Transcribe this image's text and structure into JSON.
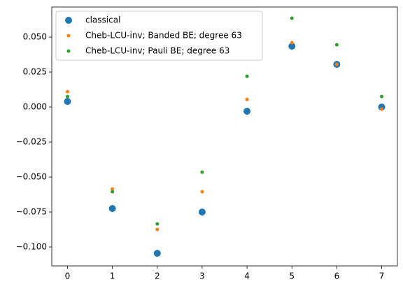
{
  "chart_data": {
    "type": "scatter",
    "x": [
      0,
      1,
      2,
      3,
      4,
      5,
      6,
      7
    ],
    "series": [
      {
        "name": "classical",
        "color": "#1f77b4",
        "values": [
          0.004,
          -0.0725,
          -0.1045,
          -0.075,
          -0.003,
          0.0435,
          0.0305,
          0.0
        ]
      },
      {
        "name": "Cheb-LCU-inv; Banded BE; degree 63",
        "color": "#ff7f0e",
        "values": [
          0.011,
          -0.0585,
          -0.0875,
          -0.0605,
          0.0055,
          0.046,
          0.0305,
          -0.0015
        ]
      },
      {
        "name": "Cheb-LCU-inv; Pauli BE; degree 63",
        "color": "#2ca02c",
        "values": [
          0.0075,
          -0.0605,
          -0.0835,
          -0.0465,
          0.022,
          0.0635,
          0.0445,
          0.0075
        ]
      }
    ],
    "xlim": [
      -0.35,
      7.35
    ],
    "ylim": [
      -0.1135,
      0.0715
    ],
    "xticks": [
      0,
      1,
      2,
      3,
      4,
      5,
      6,
      7
    ],
    "yticks": [
      {
        "value": -0.1,
        "label": "−0.100"
      },
      {
        "value": -0.075,
        "label": "−0.075"
      },
      {
        "value": -0.05,
        "label": "−0.050"
      },
      {
        "value": -0.025,
        "label": "−0.025"
      },
      {
        "value": 0,
        "label": "0.000"
      },
      {
        "value": 0.025,
        "label": "0.025"
      },
      {
        "value": 0.05,
        "label": "0.050"
      }
    ],
    "grid": false,
    "legend": "upper left"
  }
}
